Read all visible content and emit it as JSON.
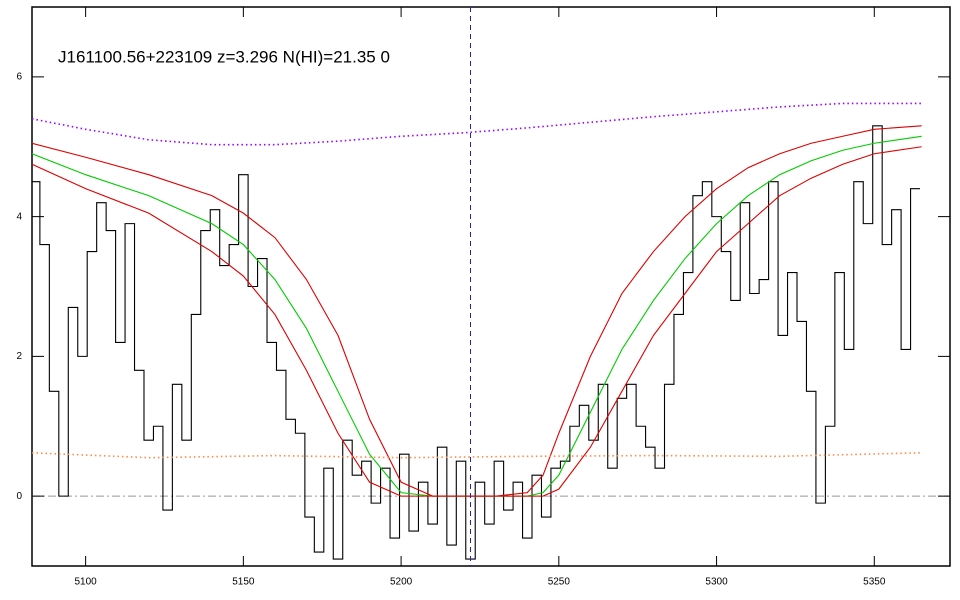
{
  "chart_data": {
    "type": "line",
    "title": "J161100.56+223109 z=3.296 N(HI)=21.35 0",
    "xlim": [
      5083,
      5374
    ],
    "ylim": [
      -1,
      7
    ],
    "xticks": [
      5100,
      5150,
      5200,
      5250,
      5300,
      5350
    ],
    "yticks": [
      0,
      2,
      4,
      6
    ],
    "vlines": [
      {
        "x": 5222,
        "color": "#2020c0",
        "dash": "dashed"
      }
    ],
    "hlines": [
      {
        "y": 0,
        "color": "#999999",
        "dash": "dashdot"
      }
    ],
    "series": [
      {
        "color": "#000000",
        "style": "step",
        "x": [
          5084,
          5087,
          5090,
          5093,
          5096,
          5099,
          5102,
          5105,
          5108,
          5111,
          5114,
          5117,
          5120,
          5123,
          5126,
          5129,
          5132,
          5135,
          5138,
          5141,
          5144,
          5147,
          5150,
          5153,
          5156,
          5159,
          5162,
          5165,
          5168,
          5171,
          5174,
          5177,
          5180,
          5183,
          5186,
          5189,
          5192,
          5195,
          5198,
          5201,
          5204,
          5207,
          5210,
          5213,
          5216,
          5219,
          5222,
          5225,
          5228,
          5231,
          5234,
          5237,
          5240,
          5243,
          5246,
          5249,
          5252,
          5255,
          5258,
          5261,
          5264,
          5267,
          5270,
          5273,
          5276,
          5279,
          5282,
          5285,
          5288,
          5291,
          5294,
          5297,
          5300,
          5303,
          5306,
          5309,
          5312,
          5315,
          5318,
          5321,
          5324,
          5327,
          5330,
          5333,
          5336,
          5339,
          5342,
          5345,
          5348,
          5351,
          5354,
          5357,
          5360,
          5363
        ],
        "values": [
          4.5,
          3.6,
          1.5,
          0.0,
          2.7,
          2.0,
          3.5,
          4.2,
          3.8,
          2.2,
          3.9,
          1.8,
          0.8,
          1.0,
          -0.2,
          1.6,
          0.8,
          2.6,
          3.8,
          4.1,
          3.3,
          3.6,
          4.6,
          3.0,
          3.4,
          2.2,
          1.8,
          1.1,
          0.9,
          -0.3,
          -0.8,
          0.4,
          -0.9,
          0.8,
          0.3,
          0.5,
          -0.1,
          0.4,
          -0.6,
          0.6,
          -0.5,
          0.2,
          -0.4,
          0.7,
          -0.7,
          0.5,
          -0.9,
          0.2,
          -0.4,
          0.5,
          -0.2,
          0.2,
          -0.6,
          0.3,
          -0.3,
          0.4,
          0.5,
          1.0,
          1.3,
          0.8,
          1.6,
          0.4,
          1.4,
          1.6,
          1.0,
          0.7,
          0.4,
          1.6,
          2.6,
          3.2,
          4.3,
          4.5,
          4.0,
          3.5,
          2.8,
          4.2,
          2.9,
          3.1,
          4.5,
          2.3,
          3.2,
          2.5,
          1.5,
          -0.1,
          1.0,
          3.2,
          2.1,
          4.5,
          3.9,
          5.3,
          3.6,
          4.1,
          2.1,
          4.4
        ]
      },
      {
        "color": "#00cc00",
        "style": "line",
        "x": [
          5083,
          5100,
          5120,
          5140,
          5150,
          5160,
          5170,
          5180,
          5190,
          5200,
          5210,
          5220,
          5230,
          5240,
          5245,
          5250,
          5260,
          5270,
          5280,
          5290,
          5300,
          5310,
          5320,
          5330,
          5340,
          5350,
          5365
        ],
        "values": [
          4.9,
          4.6,
          4.3,
          3.9,
          3.6,
          3.1,
          2.4,
          1.5,
          0.6,
          0.05,
          0,
          0,
          0,
          0,
          0.05,
          0.3,
          1.2,
          2.1,
          2.8,
          3.4,
          3.9,
          4.3,
          4.6,
          4.8,
          4.95,
          5.05,
          5.15
        ]
      },
      {
        "color": "#dd0000",
        "style": "line",
        "x": [
          5083,
          5100,
          5120,
          5140,
          5150,
          5160,
          5170,
          5180,
          5190,
          5200,
          5210,
          5220,
          5230,
          5240,
          5245,
          5250,
          5260,
          5270,
          5280,
          5290,
          5300,
          5310,
          5320,
          5330,
          5340,
          5350,
          5365
        ],
        "values": [
          5.05,
          4.85,
          4.6,
          4.3,
          4.05,
          3.7,
          3.1,
          2.3,
          1.1,
          0.2,
          0,
          0,
          0,
          0.05,
          0.3,
          0.9,
          2.0,
          2.9,
          3.5,
          4.0,
          4.4,
          4.7,
          4.9,
          5.05,
          5.15,
          5.25,
          5.3
        ]
      },
      {
        "color": "#dd0000",
        "style": "line",
        "x": [
          5083,
          5100,
          5120,
          5140,
          5150,
          5160,
          5170,
          5180,
          5190,
          5200,
          5210,
          5220,
          5230,
          5240,
          5245,
          5250,
          5260,
          5270,
          5280,
          5290,
          5300,
          5310,
          5320,
          5330,
          5340,
          5350,
          5365
        ],
        "values": [
          4.75,
          4.4,
          4.05,
          3.5,
          3.15,
          2.6,
          1.8,
          0.9,
          0.2,
          0,
          0,
          0,
          0,
          0,
          0,
          0.1,
          0.7,
          1.5,
          2.3,
          2.9,
          3.5,
          3.9,
          4.3,
          4.55,
          4.75,
          4.9,
          5.0
        ]
      },
      {
        "color": "#9900ff",
        "style": "dotted",
        "x": [
          5083,
          5100,
          5120,
          5140,
          5160,
          5180,
          5200,
          5220,
          5240,
          5260,
          5280,
          5300,
          5320,
          5340,
          5365
        ],
        "values": [
          5.4,
          5.25,
          5.1,
          5.03,
          5.03,
          5.08,
          5.15,
          5.2,
          5.27,
          5.35,
          5.43,
          5.5,
          5.57,
          5.62,
          5.62
        ]
      },
      {
        "color": "#ff8844",
        "style": "dotted",
        "x": [
          5083,
          5120,
          5160,
          5200,
          5240,
          5280,
          5320,
          5365
        ],
        "values": [
          0.62,
          0.55,
          0.58,
          0.55,
          0.57,
          0.58,
          0.57,
          0.62
        ]
      }
    ]
  }
}
